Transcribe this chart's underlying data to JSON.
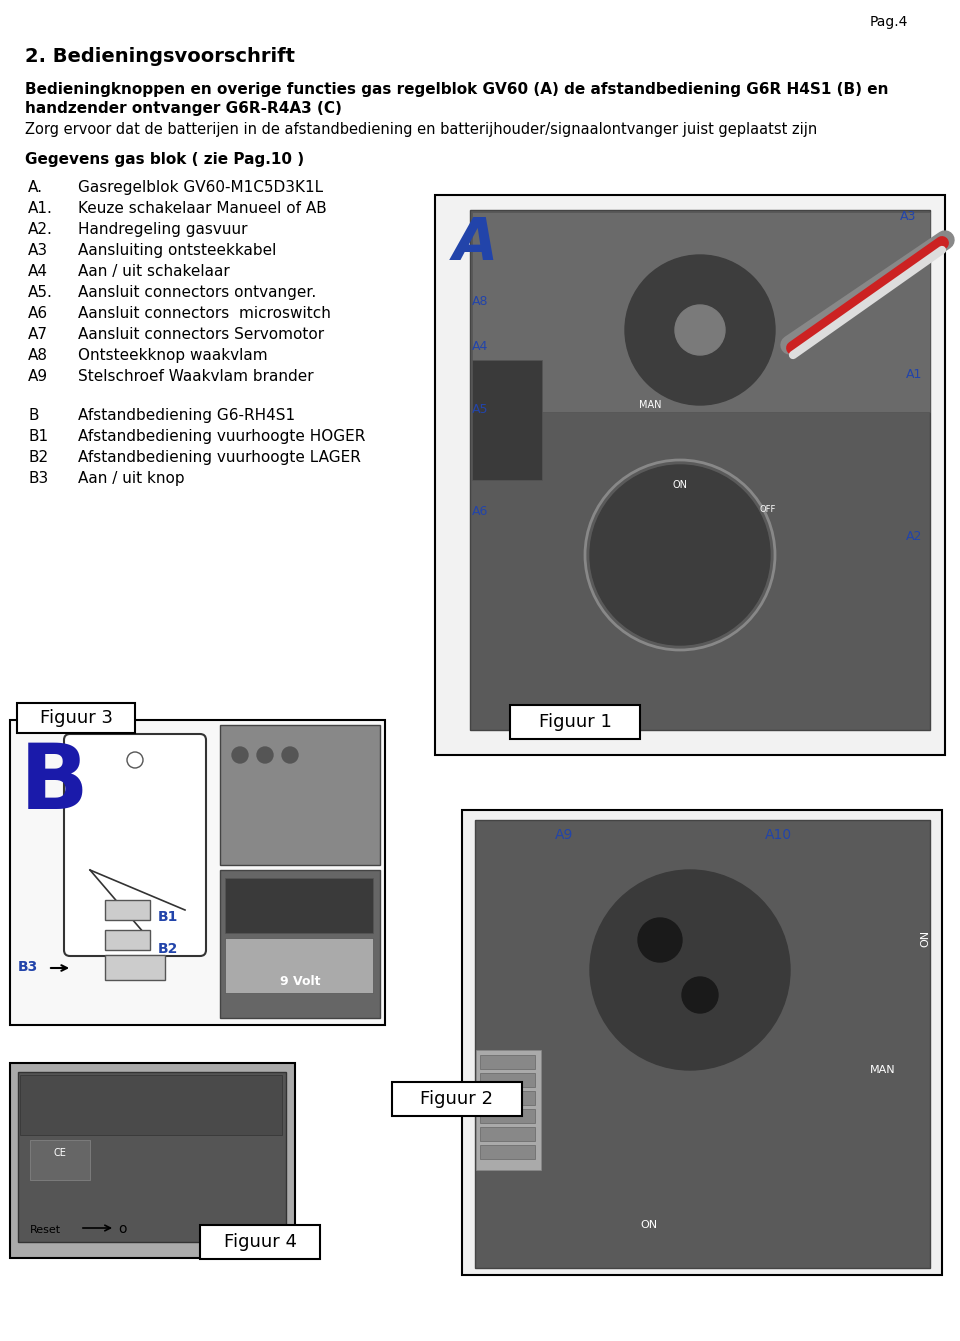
{
  "page_num": "Pag.4",
  "title": "2. Bedieningsvoorschrift",
  "bold_text_line1": "Bedieningknoppen en overige functies gas regelblok GV60 (A) de afstandbediening G6R H4S1 (B) en",
  "bold_text_line2": "handzender ontvanger G6R-R4A3 (C)",
  "normal_text": "Zorg ervoor dat de batterijen in de afstandbediening en batterijhouder/signaalontvanger juist geplaatst zijn",
  "section_header": "Gegevens gas blok ( zie Pag.10 )",
  "items_A": [
    [
      "A.",
      "Gasregelblok GV60-M1C5D3K1L"
    ],
    [
      "A1.",
      "Keuze schakelaar Manueel of AB"
    ],
    [
      "A2.",
      "Handregeling gasvuur"
    ],
    [
      "A3",
      "Aansluiting ontsteekkabel"
    ],
    [
      "A4",
      "Aan / uit schakelaar"
    ],
    [
      "A5.",
      "Aansluit connectors ontvanger."
    ],
    [
      "A6",
      "Aansluit connectors  microswitch"
    ],
    [
      "A7",
      "Aansluit connectors Servomotor"
    ],
    [
      "A8",
      "Ontsteekknop waakvlam"
    ],
    [
      "A9",
      "Stelschroef Waakvlam brander"
    ]
  ],
  "items_B": [
    [
      "B",
      "Afstandbediening G6-RH4S1"
    ],
    [
      "B1",
      "Afstandbediening vuurhoogte HOGER"
    ],
    [
      "B2",
      "Afstandbediening vuurhoogte LAGER"
    ],
    [
      "B3",
      "Aan / uit knop"
    ]
  ],
  "fig1_label": "Figuur 1",
  "fig2_label": "Figuur 2",
  "fig3_label": "Figuur 3",
  "fig4_label": "Figuur 4",
  "label_color": "#2244aa",
  "bg_color": "#ffffff",
  "text_color": "#000000",
  "fig_border_color": "#000000",
  "label_A_color": "#2244aa",
  "label_B_color": "#1a1aaa"
}
